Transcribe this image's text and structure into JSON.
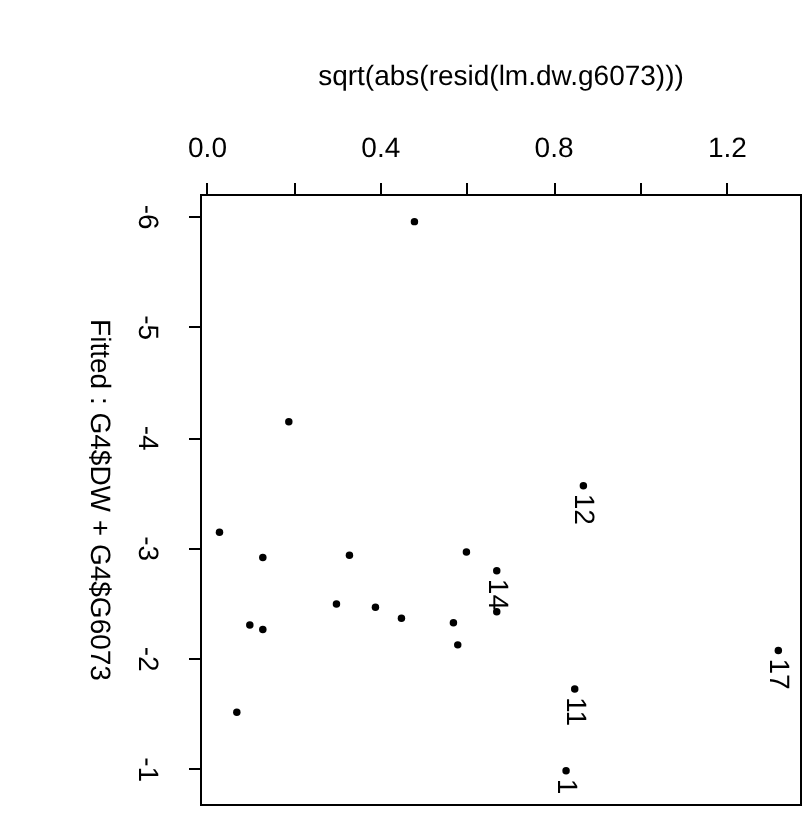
{
  "chart_data": {
    "type": "scatter",
    "xlabel": "sqrt(abs(resid(lm.dw.g6073)))",
    "ylabel": "Fitted : G4$DW + G4$G6073",
    "x": [
      0.48,
      0.19,
      0.87,
      0.03,
      0.13,
      0.33,
      0.6,
      0.67,
      0.67,
      0.3,
      0.39,
      0.45,
      0.57,
      0.58,
      0.1,
      0.13,
      0.07,
      1.32,
      0.85,
      0.83
    ],
    "series": [
      {
        "color": "#000000",
        "values": [
          -5.95,
          -4.14,
          -3.56,
          -3.14,
          -2.91,
          -2.93,
          -2.96,
          -2.79,
          -2.42,
          -2.49,
          -2.46,
          -2.36,
          -2.32,
          -2.12,
          -2.3,
          -2.26,
          -1.51,
          -2.07,
          -1.72,
          -0.98
        ]
      }
    ],
    "xlim": [
      -0.015,
      1.37
    ],
    "ylim": [
      -0.68,
      -6.2
    ],
    "xticks": [
      {
        "value": 0,
        "label": "0.0"
      },
      {
        "value": 0.2,
        "label": null
      },
      0.4,
      {
        "value": 0.6,
        "label": null
      },
      0.8,
      {
        "value": 1.0,
        "label": null
      },
      1.2
    ],
    "yticks": [
      -6,
      -5,
      -4,
      -3,
      -2,
      -1
    ],
    "annotations": [
      {
        "text": "12",
        "x": 0.87,
        "y": -3.56
      },
      {
        "text": "14",
        "x": 0.67,
        "y": -2.79
      },
      {
        "text": "17",
        "x": 1.32,
        "y": -2.07
      },
      {
        "text": "11",
        "x": 0.85,
        "y": -1.72
      },
      {
        "text": "1",
        "x": 0.83,
        "y": -0.98
      }
    ],
    "grid": false,
    "marker": "circle"
  }
}
